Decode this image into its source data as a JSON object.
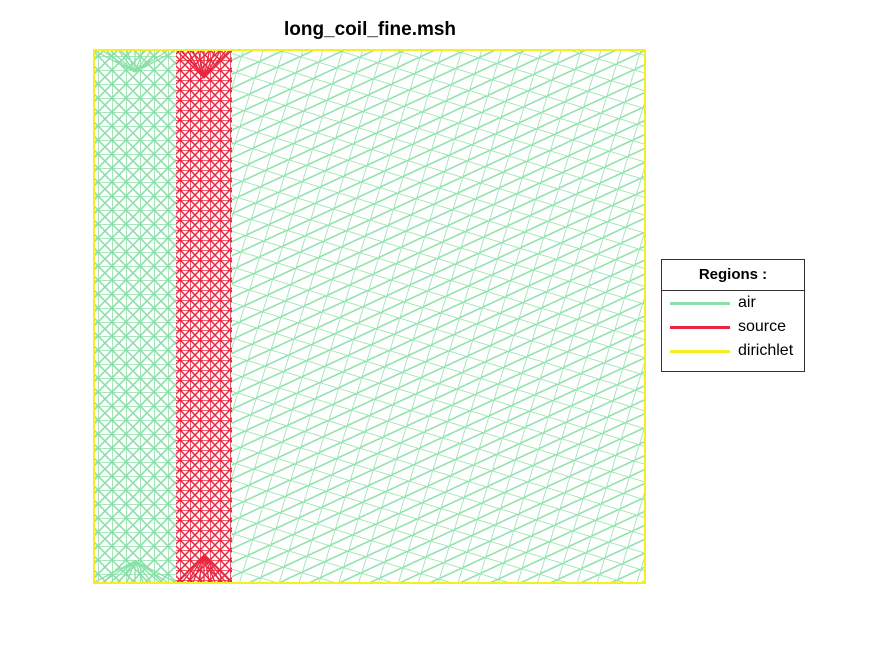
{
  "title": "long_coil_fine.msh",
  "legend": {
    "title": "Regions :",
    "entries": [
      {
        "label": "air",
        "color": "#8ae0a8"
      },
      {
        "label": "source",
        "color": "#e8263f"
      },
      {
        "label": "dirichlet",
        "color": "#f5ee20"
      }
    ]
  },
  "colors": {
    "air": "#8ae0a8",
    "source": "#e8263f",
    "dirichlet": "#f5ee20"
  }
}
